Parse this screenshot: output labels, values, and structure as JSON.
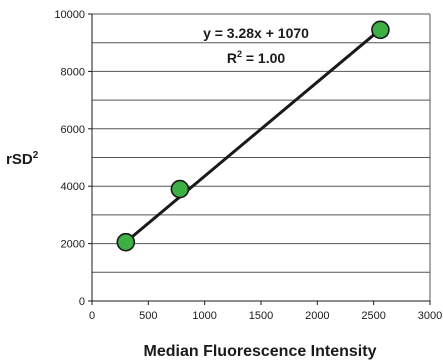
{
  "chart_data": {
    "type": "scatter",
    "xlabel": "Median Fluorescence Intensity",
    "ylabel": "rSD",
    "ylabel_superscript": "2",
    "xlim": [
      0,
      3000
    ],
    "ylim": [
      0,
      10000
    ],
    "xticks": [
      0,
      500,
      1000,
      1500,
      2000,
      2500,
      3000
    ],
    "yticks": [
      0,
      2000,
      4000,
      6000,
      8000,
      10000
    ],
    "grid": "horizontal",
    "series": [
      {
        "points": [
          {
            "x": 300,
            "y": 2050
          },
          {
            "x": 780,
            "y": 3900
          },
          {
            "x": 2560,
            "y": 9450
          }
        ]
      }
    ],
    "trendline": {
      "slope": 3.28,
      "intercept": 1070,
      "equation": "y = 3.28x + 1070",
      "r2_label": "R",
      "r2_superscript": "2",
      "r2_value": " = 1.00"
    },
    "colors": {
      "marker_fill": "#3cb043",
      "marker_stroke": "#1a1a1a",
      "line": "#1a1a1a",
      "grid": "#555555"
    }
  }
}
